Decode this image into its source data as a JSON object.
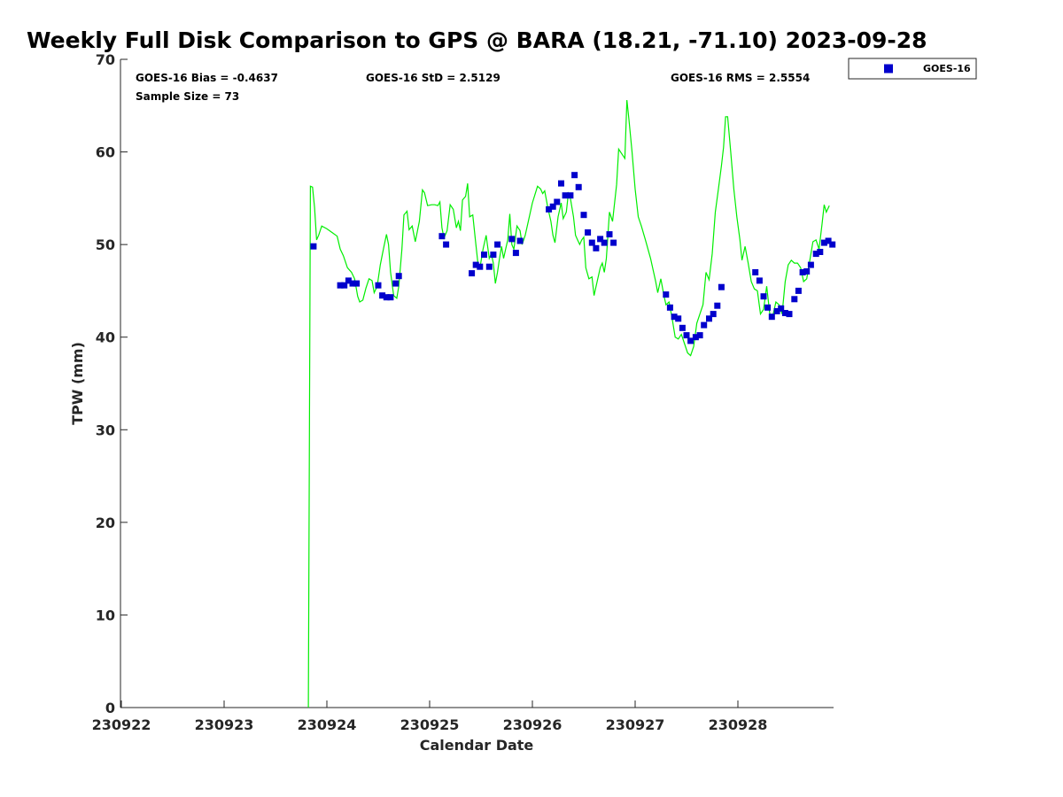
{
  "chart_data": {
    "type": "scatter+line",
    "title": "Weekly Full Disk Comparison to GPS @ BARA (18.21, -71.10) 2023-09-28",
    "xlabel": "Calendar Date",
    "ylabel": "TPW (mm)",
    "x_unit": "day",
    "x_ticks": [
      "230922",
      "230923",
      "230924",
      "230925",
      "230926",
      "230927",
      "230928"
    ],
    "xlim_day": [
      0,
      6.95
    ],
    "ylim": [
      0,
      70
    ],
    "y_ticks": [
      0,
      10,
      20,
      30,
      40,
      50,
      60,
      70
    ],
    "grid": false,
    "legend": {
      "position": "top-right-outside",
      "entries": [
        {
          "label": "GOES-16",
          "color": "#0000cc",
          "marker": "square"
        }
      ]
    },
    "stats": {
      "bias": "GOES-16 Bias = -0.4637",
      "std": "GOES-16 StD = 2.5129",
      "rms": "GOES-16 RMS = 2.5554",
      "sample": "Sample Size = 73"
    },
    "series": [
      {
        "name": "GPS",
        "style": "line",
        "color": "#00ee00",
        "points": [
          [
            1.82,
            0
          ],
          [
            1.84,
            56.3
          ],
          [
            1.86,
            56.2
          ],
          [
            1.88,
            54
          ],
          [
            1.9,
            50.5
          ],
          [
            1.92,
            51
          ],
          [
            1.95,
            52
          ],
          [
            2.0,
            51.7
          ],
          [
            2.05,
            51.3
          ],
          [
            2.1,
            50.9
          ],
          [
            2.13,
            49.5
          ],
          [
            2.16,
            48.8
          ],
          [
            2.2,
            47.5
          ],
          [
            2.24,
            47
          ],
          [
            2.27,
            46.3
          ],
          [
            2.3,
            44.4
          ],
          [
            2.32,
            43.8
          ],
          [
            2.35,
            44
          ],
          [
            2.38,
            45.3
          ],
          [
            2.41,
            46.3
          ],
          [
            2.44,
            46.1
          ],
          [
            2.46,
            44.8
          ],
          [
            2.49,
            45.5
          ],
          [
            2.52,
            47.8
          ],
          [
            2.55,
            49.5
          ],
          [
            2.58,
            51.1
          ],
          [
            2.6,
            50
          ],
          [
            2.62,
            47
          ],
          [
            2.65,
            44.5
          ],
          [
            2.68,
            44.2
          ],
          [
            2.7,
            45.5
          ],
          [
            2.73,
            49.5
          ],
          [
            2.75,
            53.2
          ],
          [
            2.78,
            53.6
          ],
          [
            2.8,
            51.6
          ],
          [
            2.83,
            52
          ],
          [
            2.86,
            50.3
          ],
          [
            2.9,
            52.5
          ],
          [
            2.93,
            55.9
          ],
          [
            2.95,
            55.6
          ],
          [
            2.98,
            54.2
          ],
          [
            3.02,
            54.3
          ],
          [
            3.05,
            54.3
          ],
          [
            3.08,
            54.2
          ],
          [
            3.1,
            54.6
          ],
          [
            3.12,
            51.8
          ],
          [
            3.14,
            50.7
          ],
          [
            3.17,
            51.5
          ],
          [
            3.2,
            54.3
          ],
          [
            3.23,
            53.8
          ],
          [
            3.26,
            51.8
          ],
          [
            3.28,
            52.5
          ],
          [
            3.3,
            51.5
          ],
          [
            3.32,
            54.8
          ],
          [
            3.35,
            55.2
          ],
          [
            3.37,
            56.6
          ],
          [
            3.39,
            53
          ],
          [
            3.42,
            53.2
          ],
          [
            3.45,
            50
          ],
          [
            3.47,
            48
          ],
          [
            3.49,
            47.5
          ],
          [
            3.52,
            49.5
          ],
          [
            3.55,
            51
          ],
          [
            3.58,
            48.5
          ],
          [
            3.6,
            49
          ],
          [
            3.62,
            48
          ],
          [
            3.64,
            45.8
          ],
          [
            3.66,
            47
          ],
          [
            3.68,
            48.5
          ],
          [
            3.7,
            49.8
          ],
          [
            3.72,
            48.5
          ],
          [
            3.74,
            49.5
          ],
          [
            3.76,
            50.5
          ],
          [
            3.78,
            53.3
          ],
          [
            3.8,
            50
          ],
          [
            3.82,
            49.5
          ],
          [
            3.85,
            52
          ],
          [
            3.88,
            51.5
          ],
          [
            3.9,
            50
          ],
          [
            3.93,
            51
          ],
          [
            3.96,
            52.5
          ],
          [
            4.0,
            54.5
          ],
          [
            4.05,
            56.3
          ],
          [
            4.08,
            56
          ],
          [
            4.1,
            55.5
          ],
          [
            4.12,
            55.8
          ],
          [
            4.15,
            54
          ],
          [
            4.18,
            52.5
          ],
          [
            4.2,
            51
          ],
          [
            4.22,
            50.2
          ],
          [
            4.25,
            53
          ],
          [
            4.28,
            54.5
          ],
          [
            4.3,
            52.8
          ],
          [
            4.33,
            53.5
          ],
          [
            4.35,
            55.5
          ],
          [
            4.37,
            55
          ],
          [
            4.4,
            53
          ],
          [
            4.42,
            51
          ],
          [
            4.44,
            50.5
          ],
          [
            4.46,
            50
          ],
          [
            4.48,
            50.5
          ],
          [
            4.5,
            50.8
          ],
          [
            4.52,
            47.5
          ],
          [
            4.55,
            46.3
          ],
          [
            4.58,
            46.5
          ],
          [
            4.6,
            44.5
          ],
          [
            4.63,
            46
          ],
          [
            4.66,
            47.5
          ],
          [
            4.68,
            48
          ],
          [
            4.7,
            47
          ],
          [
            4.72,
            48.5
          ],
          [
            4.75,
            53.5
          ],
          [
            4.78,
            52.5
          ],
          [
            4.8,
            54.5
          ],
          [
            4.82,
            56.5
          ],
          [
            4.84,
            60.3
          ],
          [
            4.87,
            59.8
          ],
          [
            4.9,
            59.3
          ],
          [
            4.92,
            65.6
          ],
          [
            4.94,
            63.5
          ],
          [
            4.97,
            60
          ],
          [
            5.0,
            56
          ],
          [
            5.03,
            53
          ],
          [
            5.06,
            52
          ],
          [
            5.1,
            50.5
          ],
          [
            5.15,
            48.5
          ],
          [
            5.2,
            46
          ],
          [
            5.22,
            44.8
          ],
          [
            5.25,
            46.3
          ],
          [
            5.28,
            44.5
          ],
          [
            5.3,
            43.5
          ],
          [
            5.33,
            43.8
          ],
          [
            5.36,
            42
          ],
          [
            5.39,
            40
          ],
          [
            5.42,
            39.8
          ],
          [
            5.45,
            40.3
          ],
          [
            5.48,
            39.3
          ],
          [
            5.51,
            38.3
          ],
          [
            5.54,
            38
          ],
          [
            5.57,
            39
          ],
          [
            5.6,
            41.5
          ],
          [
            5.63,
            42.5
          ],
          [
            5.66,
            43.5
          ],
          [
            5.69,
            47
          ],
          [
            5.72,
            46.2
          ],
          [
            5.75,
            49
          ],
          [
            5.78,
            53.5
          ],
          [
            5.81,
            56
          ],
          [
            5.84,
            58.5
          ],
          [
            5.86,
            60.5
          ],
          [
            5.88,
            63.8
          ],
          [
            5.9,
            63.8
          ],
          [
            5.93,
            60
          ],
          [
            5.96,
            56
          ],
          [
            5.99,
            53
          ],
          [
            6.02,
            50.5
          ],
          [
            6.04,
            48.3
          ],
          [
            6.07,
            49.8
          ],
          [
            6.1,
            48
          ],
          [
            6.13,
            46
          ],
          [
            6.16,
            45.2
          ],
          [
            6.19,
            45
          ],
          [
            6.22,
            42.5
          ],
          [
            6.25,
            43
          ],
          [
            6.28,
            45.5
          ],
          [
            6.31,
            42.5
          ],
          [
            6.34,
            42.3
          ],
          [
            6.37,
            43.8
          ],
          [
            6.4,
            43.5
          ],
          [
            6.43,
            42.5
          ],
          [
            6.46,
            46
          ],
          [
            6.49,
            47.8
          ],
          [
            6.52,
            48.3
          ],
          [
            6.55,
            48
          ],
          [
            6.58,
            48
          ],
          [
            6.61,
            47.5
          ],
          [
            6.64,
            46
          ],
          [
            6.67,
            46.3
          ],
          [
            6.7,
            48.3
          ],
          [
            6.73,
            50.3
          ],
          [
            6.76,
            50.5
          ],
          [
            6.79,
            49.5
          ],
          [
            6.82,
            52.3
          ],
          [
            6.84,
            54.3
          ],
          [
            6.86,
            53.5
          ],
          [
            6.89,
            54.2
          ]
        ]
      },
      {
        "name": "GOES-16",
        "style": "markers",
        "color": "#0000cc",
        "points": [
          [
            1.87,
            49.8
          ],
          [
            2.13,
            45.6
          ],
          [
            2.17,
            45.6
          ],
          [
            2.21,
            46.1
          ],
          [
            2.25,
            45.8
          ],
          [
            2.29,
            45.8
          ],
          [
            2.5,
            45.6
          ],
          [
            2.54,
            44.5
          ],
          [
            2.58,
            44.3
          ],
          [
            2.62,
            44.3
          ],
          [
            2.67,
            45.8
          ],
          [
            2.7,
            46.6
          ],
          [
            3.12,
            50.9
          ],
          [
            3.16,
            50
          ],
          [
            3.41,
            46.9
          ],
          [
            3.45,
            47.8
          ],
          [
            3.49,
            47.6
          ],
          [
            3.53,
            48.9
          ],
          [
            3.58,
            47.6
          ],
          [
            3.62,
            48.9
          ],
          [
            3.66,
            50
          ],
          [
            3.8,
            50.6
          ],
          [
            3.84,
            49.1
          ],
          [
            3.88,
            50.4
          ],
          [
            4.16,
            53.8
          ],
          [
            4.2,
            54.1
          ],
          [
            4.24,
            54.6
          ],
          [
            4.28,
            56.6
          ],
          [
            4.32,
            55.3
          ],
          [
            4.37,
            55.3
          ],
          [
            4.41,
            57.5
          ],
          [
            4.45,
            56.2
          ],
          [
            4.5,
            53.2
          ],
          [
            4.54,
            51.3
          ],
          [
            4.58,
            50.2
          ],
          [
            4.62,
            49.6
          ],
          [
            4.66,
            50.6
          ],
          [
            4.7,
            50.2
          ],
          [
            4.75,
            51.1
          ],
          [
            4.79,
            50.2
          ],
          [
            5.3,
            44.6
          ],
          [
            5.34,
            43.2
          ],
          [
            5.38,
            42.2
          ],
          [
            5.42,
            42
          ],
          [
            5.46,
            41
          ],
          [
            5.5,
            40.2
          ],
          [
            5.54,
            39.6
          ],
          [
            5.59,
            40
          ],
          [
            5.63,
            40.2
          ],
          [
            5.67,
            41.3
          ],
          [
            5.72,
            42
          ],
          [
            5.76,
            42.5
          ],
          [
            5.8,
            43.4
          ],
          [
            5.84,
            45.4
          ],
          [
            6.17,
            47
          ],
          [
            6.21,
            46.1
          ],
          [
            6.25,
            44.4
          ],
          [
            6.29,
            43.2
          ],
          [
            6.33,
            42.2
          ],
          [
            6.38,
            42.8
          ],
          [
            6.42,
            43.1
          ],
          [
            6.46,
            42.6
          ],
          [
            6.5,
            42.5
          ],
          [
            6.55,
            44.1
          ],
          [
            6.59,
            45
          ],
          [
            6.63,
            47
          ],
          [
            6.67,
            47.1
          ],
          [
            6.71,
            47.8
          ],
          [
            6.76,
            49
          ],
          [
            6.8,
            49.2
          ],
          [
            6.84,
            50.2
          ],
          [
            6.88,
            50.4
          ],
          [
            6.92,
            50
          ]
        ]
      }
    ]
  }
}
